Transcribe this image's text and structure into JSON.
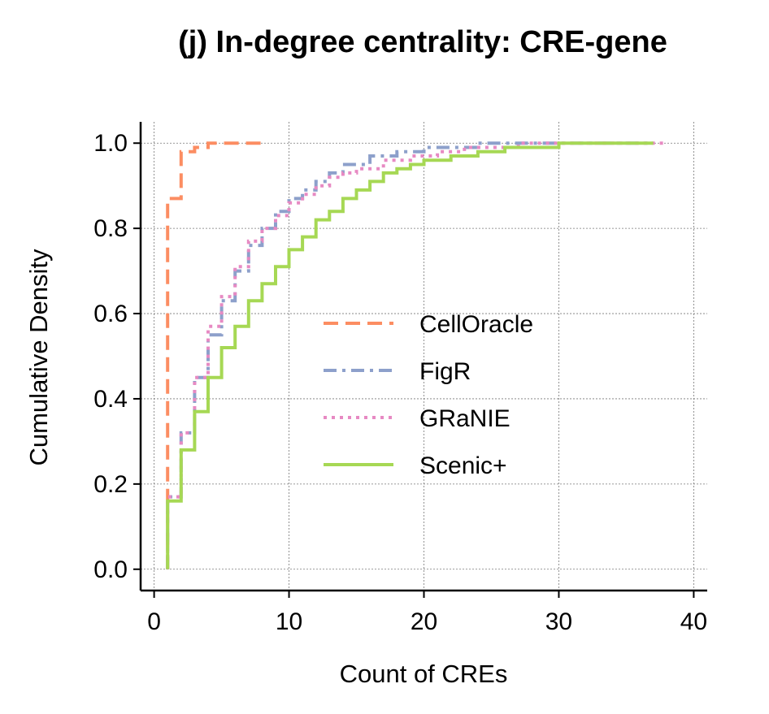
{
  "chart_data": {
    "type": "line",
    "subtype": "step-cdf",
    "title": "(j) In-degree centrality: CRE-gene",
    "xlabel": "Count of CREs",
    "ylabel": "Cumulative Density",
    "xlim": [
      -1,
      41
    ],
    "ylim": [
      -0.05,
      1.05
    ],
    "xticks": [
      0,
      10,
      20,
      30,
      40
    ],
    "yticks": [
      0.0,
      0.2,
      0.4,
      0.6,
      0.8,
      1.0
    ],
    "xtick_labels": [
      "0",
      "10",
      "20",
      "30",
      "40"
    ],
    "ytick_labels": [
      "0.0",
      "0.2",
      "0.4",
      "0.6",
      "0.8",
      "1.0"
    ],
    "grid": true,
    "legend_position": "center-right",
    "series": [
      {
        "name": "CellOracle",
        "color": "#fc8d62",
        "dash": "dashed",
        "points": [
          [
            1,
            0.0
          ],
          [
            1,
            0.87
          ],
          [
            2,
            0.87
          ],
          [
            2,
            0.98
          ],
          [
            3,
            0.98
          ],
          [
            3,
            0.99
          ],
          [
            4,
            0.99
          ],
          [
            4,
            1.0
          ],
          [
            8,
            1.0
          ]
        ]
      },
      {
        "name": "FigR",
        "color": "#8da0cb",
        "dash": "dashdot",
        "points": [
          [
            1,
            0.0
          ],
          [
            1,
            0.17
          ],
          [
            2,
            0.17
          ],
          [
            2,
            0.32
          ],
          [
            3,
            0.32
          ],
          [
            3,
            0.45
          ],
          [
            4,
            0.45
          ],
          [
            4,
            0.55
          ],
          [
            5,
            0.55
          ],
          [
            5,
            0.63
          ],
          [
            6,
            0.63
          ],
          [
            6,
            0.7
          ],
          [
            7,
            0.7
          ],
          [
            7,
            0.76
          ],
          [
            8,
            0.76
          ],
          [
            8,
            0.8
          ],
          [
            9,
            0.8
          ],
          [
            9,
            0.84
          ],
          [
            10,
            0.84
          ],
          [
            10,
            0.87
          ],
          [
            11,
            0.87
          ],
          [
            11,
            0.89
          ],
          [
            12,
            0.89
          ],
          [
            12,
            0.91
          ],
          [
            13,
            0.91
          ],
          [
            13,
            0.93
          ],
          [
            14,
            0.93
          ],
          [
            14,
            0.95
          ],
          [
            16,
            0.95
          ],
          [
            16,
            0.97
          ],
          [
            18,
            0.97
          ],
          [
            18,
            0.98
          ],
          [
            20,
            0.98
          ],
          [
            20,
            0.99
          ],
          [
            24,
            0.99
          ],
          [
            24,
            1.0
          ],
          [
            37,
            1.0
          ]
        ]
      },
      {
        "name": "GRaNIE",
        "color": "#e78ac3",
        "dash": "dotted",
        "points": [
          [
            1,
            0.0
          ],
          [
            1,
            0.17
          ],
          [
            2,
            0.17
          ],
          [
            2,
            0.32
          ],
          [
            3,
            0.32
          ],
          [
            3,
            0.45
          ],
          [
            4,
            0.45
          ],
          [
            4,
            0.57
          ],
          [
            5,
            0.57
          ],
          [
            5,
            0.64
          ],
          [
            6,
            0.64
          ],
          [
            6,
            0.71
          ],
          [
            7,
            0.71
          ],
          [
            7,
            0.77
          ],
          [
            8,
            0.77
          ],
          [
            8,
            0.8
          ],
          [
            9,
            0.8
          ],
          [
            9,
            0.83
          ],
          [
            10,
            0.83
          ],
          [
            10,
            0.86
          ],
          [
            11,
            0.86
          ],
          [
            11,
            0.88
          ],
          [
            12,
            0.88
          ],
          [
            12,
            0.9
          ],
          [
            13,
            0.9
          ],
          [
            13,
            0.92
          ],
          [
            14,
            0.92
          ],
          [
            14,
            0.93
          ],
          [
            15,
            0.93
          ],
          [
            15,
            0.94
          ],
          [
            17,
            0.94
          ],
          [
            17,
            0.96
          ],
          [
            19,
            0.96
          ],
          [
            19,
            0.97
          ],
          [
            21,
            0.97
          ],
          [
            21,
            0.98
          ],
          [
            23,
            0.98
          ],
          [
            23,
            0.99
          ],
          [
            27,
            0.99
          ],
          [
            27,
            1.0
          ],
          [
            38,
            1.0
          ]
        ]
      },
      {
        "name": "Scenic+",
        "color": "#a6d854",
        "dash": "solid",
        "points": [
          [
            1,
            0.0
          ],
          [
            1,
            0.16
          ],
          [
            2,
            0.16
          ],
          [
            2,
            0.28
          ],
          [
            3,
            0.28
          ],
          [
            3,
            0.37
          ],
          [
            4,
            0.37
          ],
          [
            4,
            0.45
          ],
          [
            5,
            0.45
          ],
          [
            5,
            0.52
          ],
          [
            6,
            0.52
          ],
          [
            6,
            0.57
          ],
          [
            7,
            0.57
          ],
          [
            7,
            0.63
          ],
          [
            8,
            0.63
          ],
          [
            8,
            0.67
          ],
          [
            9,
            0.67
          ],
          [
            9,
            0.71
          ],
          [
            10,
            0.71
          ],
          [
            10,
            0.75
          ],
          [
            11,
            0.75
          ],
          [
            11,
            0.78
          ],
          [
            12,
            0.78
          ],
          [
            12,
            0.82
          ],
          [
            13,
            0.82
          ],
          [
            13,
            0.84
          ],
          [
            14,
            0.84
          ],
          [
            14,
            0.87
          ],
          [
            15,
            0.87
          ],
          [
            15,
            0.89
          ],
          [
            16,
            0.89
          ],
          [
            16,
            0.91
          ],
          [
            17,
            0.91
          ],
          [
            17,
            0.93
          ],
          [
            18,
            0.93
          ],
          [
            18,
            0.94
          ],
          [
            19,
            0.94
          ],
          [
            19,
            0.95
          ],
          [
            20,
            0.95
          ],
          [
            20,
            0.96
          ],
          [
            22,
            0.96
          ],
          [
            22,
            0.97
          ],
          [
            24,
            0.97
          ],
          [
            24,
            0.98
          ],
          [
            26,
            0.98
          ],
          [
            26,
            0.99
          ],
          [
            30,
            0.99
          ],
          [
            30,
            1.0
          ],
          [
            37,
            1.0
          ]
        ]
      }
    ]
  }
}
